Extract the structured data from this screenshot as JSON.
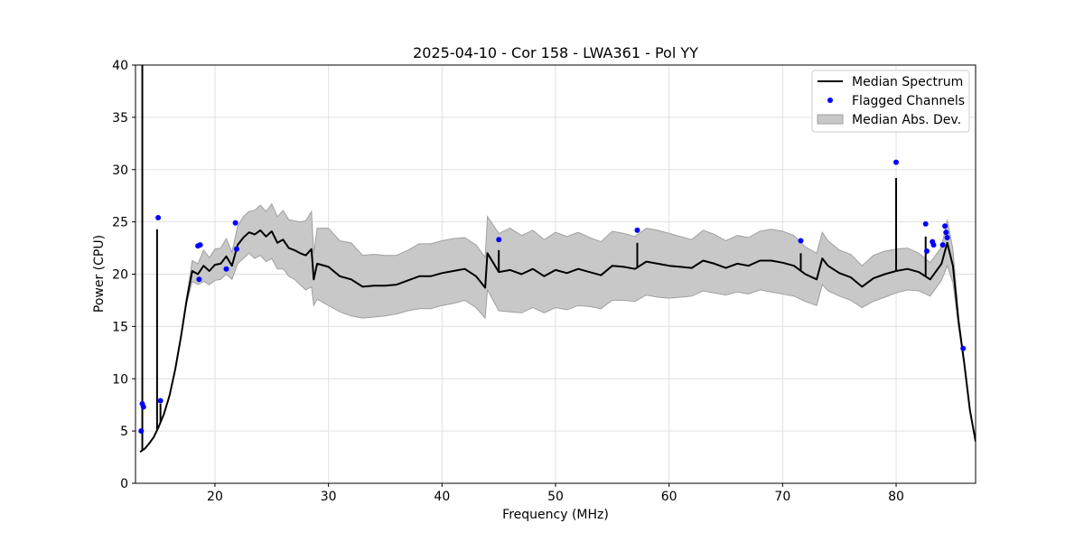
{
  "chart_data": {
    "type": "line",
    "title": "2025-04-10 - Cor 158 - LWA361 - Pol YY",
    "xlabel": "Frequency (MHz)",
    "ylabel": "Power (CPU)",
    "xlim": [
      13,
      87
    ],
    "ylim": [
      0,
      40
    ],
    "x_ticks": [
      20,
      30,
      40,
      50,
      60,
      70,
      80
    ],
    "y_ticks": [
      0,
      5,
      10,
      15,
      20,
      25,
      30,
      35,
      40
    ],
    "x_tick_labels": [
      "20",
      "30",
      "40",
      "50",
      "60",
      "70",
      "80"
    ],
    "y_tick_labels": [
      "0",
      "5",
      "10",
      "15",
      "20",
      "25",
      "30",
      "35",
      "40"
    ],
    "grid": true,
    "legend": {
      "placement": "top-right",
      "entries": [
        "Median Spectrum",
        "Flagged Channels",
        "Median Abs. Dev."
      ]
    },
    "colors": {
      "median": "#000000",
      "flagged": "#0000ff",
      "mad_fill": "#c8c8c8",
      "mad_edge": "#a0a0a0",
      "grid": "#e0e0e0"
    },
    "series": [
      {
        "name": "Median Spectrum",
        "x": [
          13.4,
          13.8,
          14.2,
          14.6,
          15.0,
          15.5,
          16.0,
          16.5,
          17.0,
          17.5,
          18.0,
          18.5,
          19.0,
          19.5,
          20.0,
          20.5,
          21.0,
          21.5,
          22.0,
          22.5,
          23.0,
          23.5,
          24.0,
          24.5,
          25.0,
          25.5,
          26.0,
          26.5,
          27.0,
          27.5,
          28.0,
          28.5,
          28.7,
          29.0,
          30.0,
          31.0,
          32.0,
          33.0,
          34.0,
          35.0,
          36.0,
          37.0,
          38.0,
          39.0,
          40.0,
          41.0,
          42.0,
          43.0,
          43.8,
          44.0,
          45.0,
          46.0,
          47.0,
          48.0,
          49.0,
          50.0,
          51.0,
          52.0,
          53.0,
          54.0,
          55.0,
          56.0,
          57.0,
          58.0,
          59.0,
          60.0,
          61.0,
          62.0,
          63.0,
          64.0,
          65.0,
          66.0,
          67.0,
          68.0,
          69.0,
          70.0,
          71.0,
          72.0,
          73.0,
          73.5,
          74.0,
          75.0,
          76.0,
          77.0,
          78.0,
          79.0,
          80.0,
          81.0,
          82.0,
          83.0,
          84.0,
          84.5,
          85.0,
          85.5,
          86.0,
          86.5,
          87.0
        ],
        "values": [
          3.0,
          3.3,
          3.8,
          4.4,
          5.3,
          6.6,
          8.4,
          10.9,
          14.0,
          17.5,
          20.3,
          20.0,
          20.8,
          20.3,
          20.9,
          21.0,
          21.7,
          20.8,
          22.8,
          23.5,
          24.0,
          23.8,
          24.2,
          23.6,
          24.1,
          23.0,
          23.3,
          22.5,
          22.3,
          22.0,
          21.8,
          22.4,
          19.5,
          21.0,
          20.7,
          19.8,
          19.5,
          18.8,
          18.9,
          18.9,
          19.0,
          19.4,
          19.8,
          19.8,
          20.1,
          20.3,
          20.5,
          19.8,
          18.7,
          22.0,
          20.2,
          20.4,
          20.0,
          20.5,
          19.8,
          20.4,
          20.1,
          20.5,
          20.2,
          19.9,
          20.8,
          20.7,
          20.5,
          21.2,
          21.0,
          20.8,
          20.7,
          20.6,
          21.3,
          21.0,
          20.6,
          21.0,
          20.8,
          21.3,
          21.3,
          21.1,
          20.8,
          20.0,
          19.5,
          21.5,
          20.8,
          20.1,
          19.7,
          18.8,
          19.6,
          20.0,
          20.3,
          20.5,
          20.2,
          19.5,
          21.0,
          23.0,
          20.8,
          15.5,
          11.5,
          7.0,
          4.0
        ],
        "lower": [
          3.0,
          3.3,
          3.8,
          4.4,
          5.3,
          6.6,
          8.4,
          10.9,
          14.0,
          17.2,
          19.3,
          19.0,
          19.3,
          19.0,
          19.4,
          19.5,
          20.0,
          19.5,
          21.0,
          21.5,
          22.0,
          21.5,
          21.8,
          21.2,
          21.5,
          20.5,
          20.5,
          19.8,
          19.5,
          19.0,
          18.5,
          18.8,
          17.0,
          17.6,
          17.0,
          16.4,
          16.0,
          15.8,
          15.9,
          16.0,
          16.2,
          16.5,
          16.7,
          16.7,
          17.0,
          17.2,
          17.5,
          16.8,
          15.8,
          18.5,
          16.5,
          16.4,
          16.3,
          16.8,
          16.3,
          16.8,
          16.6,
          17.0,
          16.9,
          16.7,
          17.5,
          17.5,
          17.4,
          18.0,
          17.8,
          17.7,
          17.8,
          17.9,
          18.4,
          18.2,
          18.0,
          18.3,
          18.1,
          18.5,
          18.3,
          18.1,
          17.9,
          17.4,
          17.0,
          19.0,
          18.4,
          17.9,
          17.5,
          16.8,
          17.4,
          17.8,
          18.2,
          18.5,
          18.4,
          17.9,
          19.4,
          20.8,
          19.2,
          15.0,
          11.3,
          6.9,
          4.0
        ],
        "upper": [
          3.0,
          3.3,
          3.8,
          4.4,
          5.3,
          6.6,
          8.4,
          10.9,
          14.0,
          17.8,
          21.3,
          21.0,
          22.3,
          21.6,
          22.4,
          22.5,
          23.4,
          22.1,
          24.6,
          25.5,
          26.0,
          26.1,
          26.6,
          26.0,
          26.7,
          25.5,
          26.1,
          25.2,
          25.1,
          25.0,
          25.1,
          26.0,
          22.0,
          24.4,
          24.4,
          23.2,
          23.0,
          21.8,
          21.9,
          21.8,
          21.8,
          22.3,
          22.9,
          22.9,
          23.2,
          23.4,
          23.5,
          22.8,
          21.6,
          25.5,
          23.9,
          24.4,
          23.7,
          24.2,
          23.3,
          24.0,
          23.6,
          24.0,
          23.5,
          23.1,
          24.1,
          23.9,
          23.6,
          24.4,
          24.2,
          23.9,
          23.6,
          23.3,
          24.2,
          23.8,
          23.2,
          23.7,
          23.5,
          24.1,
          24.3,
          24.1,
          23.7,
          22.6,
          22.0,
          24.0,
          23.2,
          22.3,
          21.9,
          20.8,
          21.8,
          22.2,
          22.4,
          22.5,
          22.0,
          21.1,
          22.6,
          25.2,
          22.4,
          16.0,
          11.7,
          7.1,
          4.0
        ]
      },
      {
        "name": "Flagged Channels",
        "x": [
          13.5,
          13.6,
          13.7,
          15.0,
          15.2,
          18.5,
          18.6,
          18.7,
          21.0,
          21.8,
          21.9,
          45.0,
          57.2,
          71.6,
          80.0,
          82.6,
          82.7,
          83.2,
          83.3,
          84.1,
          84.3,
          84.4,
          84.5,
          85.9
        ],
        "values": [
          5.0,
          7.6,
          7.3,
          25.4,
          7.9,
          22.7,
          19.5,
          22.8,
          20.5,
          24.9,
          22.4,
          23.3,
          24.2,
          23.2,
          30.7,
          24.8,
          22.2,
          23.1,
          22.8,
          22.8,
          24.6,
          24.0,
          23.5,
          12.9
        ]
      }
    ],
    "spikes": [
      {
        "x": 13.6,
        "top": 40.0
      },
      {
        "x": 14.9,
        "top": 24.3
      },
      {
        "x": 15.2,
        "top": 7.6
      },
      {
        "x": 45.0,
        "top": 22.3
      },
      {
        "x": 57.2,
        "top": 23.0
      },
      {
        "x": 71.6,
        "top": 22.0
      },
      {
        "x": 80.0,
        "top": 29.2
      },
      {
        "x": 82.6,
        "top": 23.6
      },
      {
        "x": 85.9,
        "top": 12.3
      }
    ]
  }
}
